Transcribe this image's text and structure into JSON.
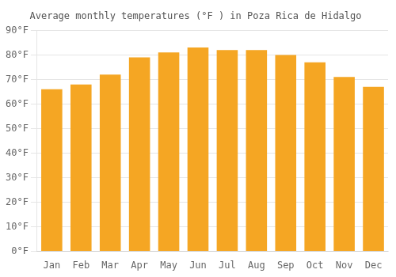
{
  "chart_data": {
    "type": "bar",
    "title": "Average monthly temperatures (°F ) in Poza Rica de Hidalgo",
    "categories": [
      "Jan",
      "Feb",
      "Mar",
      "Apr",
      "May",
      "Jun",
      "Jul",
      "Aug",
      "Sep",
      "Oct",
      "Nov",
      "Dec"
    ],
    "values": [
      66,
      68,
      72,
      79,
      81,
      83,
      82,
      82,
      80,
      77,
      71,
      67
    ],
    "color": "#F5A623",
    "ylim": [
      0,
      90
    ],
    "yticks": [
      {
        "value": 0,
        "label": "0°F"
      },
      {
        "value": 10,
        "label": "10°F"
      },
      {
        "value": 20,
        "label": "20°F"
      },
      {
        "value": 30,
        "label": "30°F"
      },
      {
        "value": 40,
        "label": "40°F"
      },
      {
        "value": 50,
        "label": "50°F"
      },
      {
        "value": 60,
        "label": "60°F"
      },
      {
        "value": 70,
        "label": "70°F"
      },
      {
        "value": 80,
        "label": "80°F"
      },
      {
        "value": 90,
        "label": "90°F"
      }
    ],
    "grid": true
  }
}
